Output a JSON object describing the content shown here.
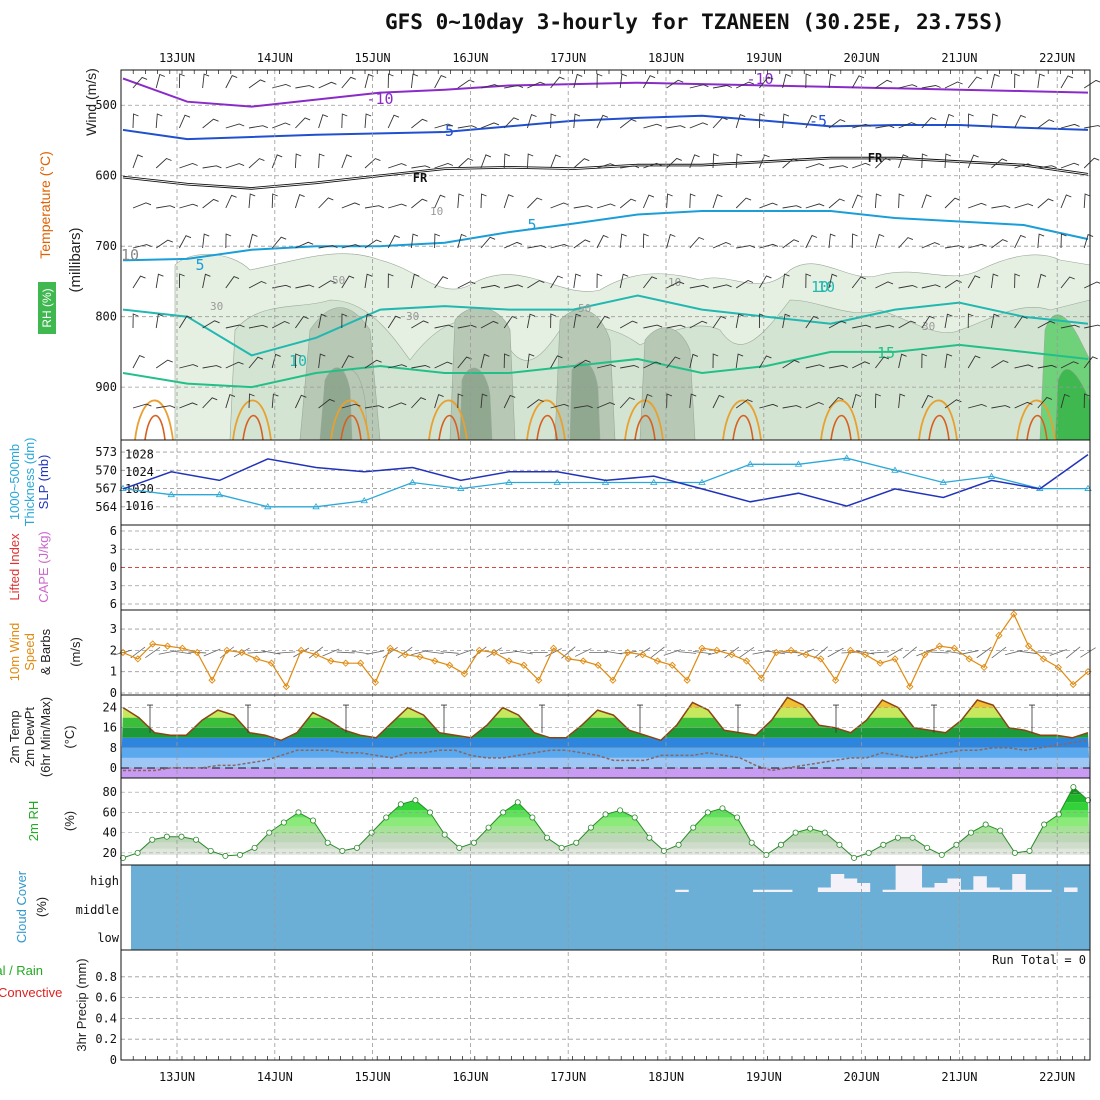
{
  "title": "GFS 0~10day 3-hourly for TZANEEN (30.25E, 23.75S)",
  "date_labels": [
    "13JUN",
    "14JUN",
    "15JUN",
    "16JUN",
    "17JUN",
    "18JUN",
    "19JUN",
    "20JUN",
    "21JUN",
    "22JUN"
  ],
  "panel_labels": {
    "upper": [
      {
        "text": "Wind (m/s)",
        "color": "#222222"
      },
      {
        "text": "Temperature (°C)",
        "color": "#e06000"
      },
      {
        "text": "(millibars)",
        "color": "#222222"
      }
    ],
    "rh_label": "RH (%)",
    "thickness": [
      {
        "text": "1000~500mb",
        "color": "#2aa8d8"
      },
      {
        "text": "Thickness (dm)",
        "color": "#2aa8d8"
      },
      {
        "text": "SLP (mb)",
        "color": "#2233bb"
      }
    ],
    "cape": [
      {
        "text": "Lifted Index",
        "color": "#dd3333"
      },
      {
        "text": "CAPE (J/kg)",
        "color": "#cc66cc"
      }
    ],
    "wind10": [
      {
        "text": "10m Wind",
        "color": "#e08a10"
      },
      {
        "text": "Speed",
        "color": "#e08a10"
      },
      {
        "text": "& Barbs",
        "color": "#222222"
      },
      {
        "text": "(m/s)",
        "color": "#222222"
      }
    ],
    "temp2m": [
      {
        "text": "2m Temp",
        "color": "#222222"
      },
      {
        "text": "2m DewPt",
        "color": "#222222"
      },
      {
        "text": "(6hr Min/Max)",
        "color": "#222222"
      },
      {
        "text": "(°C)",
        "color": "#222222"
      }
    ],
    "rh2m": [
      {
        "text": "2m RH",
        "color": "#22aa22"
      },
      {
        "text": "(%)",
        "color": "#222222"
      }
    ],
    "cloud": [
      {
        "text": "Cloud Cover",
        "color": "#3399cc"
      },
      {
        "text": "(%)",
        "color": "#222222"
      }
    ],
    "precip": [
      {
        "text": "Total / Rain",
        "color": "#22aa22"
      },
      {
        "text": "Convective",
        "color": "#dd2222"
      },
      {
        "text": "3hr Precip (mm)",
        "color": "#222222"
      }
    ]
  },
  "chart_data": [
    {
      "type": "heatmap",
      "panel": "upper-air cross section",
      "y_axis": {
        "label": "millibars",
        "ticks": [
          500,
          600,
          700,
          800,
          900
        ],
        "range": [
          450,
          975
        ]
      },
      "temperature_contours": [
        {
          "label": "-10",
          "color": "#8a2bc8",
          "pressure": [
            462,
            495,
            502,
            492,
            482,
            478,
            472,
            470,
            468,
            470,
            472,
            474,
            476,
            478,
            480,
            482
          ]
        },
        {
          "label": "-5",
          "color": "#2050d0",
          "pressure": [
            535,
            548,
            545,
            542,
            540,
            538,
            530,
            522,
            518,
            515,
            522,
            530,
            528,
            528,
            532,
            535
          ]
        },
        {
          "label": "FR",
          "color": "#111111",
          "pressure": [
            602,
            612,
            618,
            610,
            600,
            590,
            588,
            590,
            585,
            585,
            580,
            575,
            575,
            580,
            585,
            598
          ]
        },
        {
          "label": "5",
          "color": "#1a9ed8",
          "pressure": [
            720,
            718,
            705,
            700,
            700,
            695,
            680,
            668,
            655,
            650,
            650,
            650,
            660,
            665,
            670,
            690
          ]
        },
        {
          "label": "10",
          "color": "#20b8b0",
          "pressure": [
            790,
            800,
            855,
            830,
            790,
            785,
            790,
            790,
            770,
            790,
            800,
            810,
            790,
            780,
            800,
            810
          ]
        },
        {
          "label": "15",
          "color": "#22c088",
          "pressure": [
            880,
            895,
            900,
            880,
            870,
            880,
            880,
            870,
            860,
            880,
            870,
            850,
            850,
            840,
            850,
            860
          ]
        }
      ],
      "isotherm_labels": [
        "-10",
        "-10",
        "-5",
        "-5",
        "FR",
        "FR",
        "10",
        "5",
        "5",
        "10",
        "10",
        "15",
        "10"
      ],
      "rh_labels": [
        "10",
        "30",
        "50",
        "50",
        "30",
        "10",
        "30"
      ],
      "rh_shading_levels": [
        30,
        50,
        70,
        90
      ]
    },
    {
      "type": "line",
      "panel": "thickness_slp",
      "x": [
        "12JUN 12Z",
        "13JUN 00Z",
        "13JUN 12Z",
        "14JUN 00Z",
        "14JUN 12Z",
        "15JUN 00Z",
        "15JUN 12Z",
        "16JUN 00Z",
        "16JUN 12Z",
        "17JUN 00Z",
        "17JUN 12Z",
        "18JUN 00Z",
        "18JUN 12Z",
        "19JUN 00Z",
        "19JUN 12Z",
        "20JUN 00Z",
        "20JUN 12Z",
        "21JUN 00Z",
        "21JUN 12Z",
        "22JUN 00Z",
        "22JUN 12Z"
      ],
      "series": [
        {
          "name": "SLP (mb)",
          "color": "#2233bb",
          "axis": "right",
          "values": [
            1020,
            1024,
            1022,
            1027,
            1025,
            1024,
            1025,
            1022,
            1024,
            1024,
            1022,
            1023,
            1020,
            1017,
            1019,
            1016,
            1020,
            1018,
            1022,
            1020,
            1028
          ]
        },
        {
          "name": "1000~500mb Thickness (dm)",
          "color": "#2aa8d8",
          "axis": "left",
          "values": [
            567,
            566,
            566,
            564,
            564,
            565,
            568,
            567,
            568,
            568,
            568,
            568,
            568,
            571,
            571,
            572,
            570,
            568,
            569,
            567,
            567
          ]
        }
      ],
      "left_ticks": [
        564,
        567,
        570,
        573
      ],
      "right_ticks": [
        1016,
        1020,
        1024,
        1028
      ]
    },
    {
      "type": "line",
      "panel": "cape_lifted_index",
      "y_ticks": [
        -6,
        -3,
        0,
        3,
        6
      ],
      "ylim": [
        -6,
        6
      ],
      "series": [
        {
          "name": "Lifted Index",
          "values": []
        },
        {
          "name": "CAPE (J/kg)",
          "values": []
        }
      ],
      "zero_line": 0
    },
    {
      "type": "line",
      "panel": "wind10m",
      "ylim": [
        0,
        3.8
      ],
      "y_ticks": [
        0,
        1,
        2,
        3
      ],
      "series": [
        {
          "name": "10m Wind Speed",
          "color": "#e08a10",
          "values": [
            1.9,
            1.6,
            2.3,
            2.2,
            2.1,
            1.9,
            0.6,
            2.0,
            1.9,
            1.6,
            1.4,
            0.3,
            2.0,
            1.8,
            1.5,
            1.4,
            1.4,
            0.5,
            2.1,
            1.8,
            1.7,
            1.5,
            1.3,
            0.9,
            2.0,
            1.9,
            1.5,
            1.3,
            0.6,
            2.1,
            1.6,
            1.5,
            1.3,
            0.6,
            1.9,
            1.8,
            1.5,
            1.3,
            0.6,
            2.1,
            2.0,
            1.8,
            1.5,
            0.7,
            1.9,
            2.0,
            1.8,
            1.6,
            0.6,
            2.0,
            1.8,
            1.4,
            1.6,
            0.3,
            1.8,
            2.2,
            2.1,
            1.6,
            1.2,
            2.7,
            3.7,
            2.2,
            1.6,
            1.2,
            0.4,
            1.0
          ]
        }
      ]
    },
    {
      "type": "area",
      "panel": "temp2m",
      "ylim": [
        -4,
        29
      ],
      "y_ticks": [
        0,
        8,
        16,
        24
      ],
      "series": [
        {
          "name": "2m Temp",
          "color": "#8b4513",
          "values": [
            24,
            20,
            14,
            13,
            13,
            19,
            23,
            21,
            14,
            13,
            11,
            14,
            22,
            19,
            15,
            13,
            12,
            18,
            24,
            21,
            14,
            13,
            12,
            17,
            24,
            21,
            14,
            12,
            12,
            17,
            23,
            21,
            15,
            13,
            11,
            17,
            26,
            23,
            15,
            14,
            13,
            19,
            28,
            25,
            17,
            16,
            14,
            19,
            27,
            24,
            16,
            15,
            14,
            19,
            27,
            25,
            16,
            15,
            13,
            13,
            12,
            14
          ]
        },
        {
          "name": "2m DewPt",
          "color": "#886666",
          "values": [
            -1,
            -1,
            -1,
            0,
            0,
            0,
            1,
            1,
            2,
            3,
            5,
            7,
            7,
            7,
            6,
            6,
            5,
            4,
            6,
            6,
            7,
            7,
            5,
            4,
            4,
            5,
            6,
            7,
            7,
            6,
            5,
            3,
            3,
            3,
            5,
            5,
            5,
            6,
            5,
            4,
            1,
            -1,
            0,
            1,
            2,
            3,
            4,
            4,
            6,
            5,
            4,
            5,
            6,
            7,
            7,
            8,
            8,
            7,
            8,
            9,
            10,
            11
          ]
        }
      ]
    },
    {
      "type": "area",
      "panel": "rh2m",
      "ylim": [
        10,
        92
      ],
      "y_ticks": [
        20,
        40,
        60,
        80
      ],
      "series": [
        {
          "name": "2m RH",
          "color": "#22aa22",
          "values": [
            15,
            20,
            33,
            36,
            36,
            33,
            22,
            17,
            18,
            25,
            40,
            50,
            60,
            52,
            30,
            22,
            25,
            40,
            55,
            68,
            72,
            60,
            38,
            25,
            30,
            45,
            60,
            70,
            55,
            35,
            25,
            30,
            45,
            58,
            62,
            55,
            35,
            22,
            28,
            45,
            60,
            64,
            55,
            30,
            18,
            28,
            40,
            44,
            40,
            28,
            15,
            20,
            28,
            35,
            35,
            25,
            18,
            28,
            40,
            48,
            42,
            20,
            22,
            48,
            58,
            85,
            72
          ]
        }
      ]
    },
    {
      "type": "bar",
      "panel": "cloud_cover",
      "levels": [
        "high",
        "middle",
        "low"
      ],
      "series": [
        {
          "name": "high cloud",
          "values": [
            0,
            0,
            0,
            0,
            0,
            0,
            0,
            0,
            0,
            0,
            0,
            0,
            0,
            0,
            0,
            0,
            0,
            0,
            0,
            0,
            0,
            0,
            0,
            0,
            0,
            0,
            0,
            0,
            0,
            0,
            0,
            0,
            0,
            0,
            0,
            0,
            0,
            0,
            0,
            0,
            0,
            0,
            5,
            0,
            0,
            0,
            0,
            0,
            5,
            5,
            5,
            0,
            0,
            10,
            40,
            30,
            20,
            0,
            5,
            60,
            60,
            10,
            20,
            30,
            5,
            35,
            10,
            5,
            40,
            5,
            5,
            0,
            10,
            0
          ]
        }
      ]
    },
    {
      "type": "bar",
      "panel": "precip3h",
      "ylim": [
        0,
        1
      ],
      "y_ticks": [
        0,
        0.2,
        0.4,
        0.6,
        0.8
      ],
      "annotation": "Run Total = 0",
      "series": [
        {
          "name": "Total / Rain",
          "values": []
        },
        {
          "name": "Convective",
          "values": []
        }
      ]
    }
  ]
}
